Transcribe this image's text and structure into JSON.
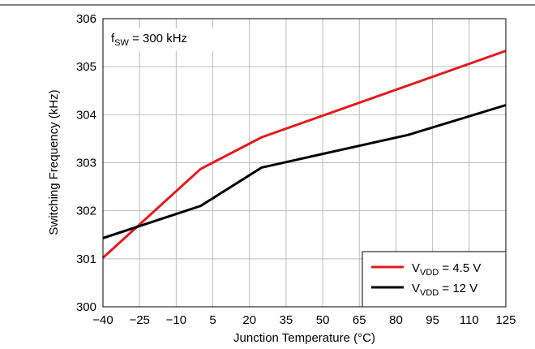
{
  "chart_data": {
    "type": "line",
    "title": "",
    "xlabel": "Junction Temperature (°C)",
    "ylabel": "Switching Frequency (kHz)",
    "annotation": {
      "prefix": "f",
      "subscript": "SW",
      "suffix": " = 300 kHz"
    },
    "xlim": [
      -40,
      125
    ],
    "ylim": [
      300,
      306
    ],
    "x_ticks": [
      -40,
      -25,
      -10,
      5,
      20,
      35,
      50,
      65,
      80,
      95,
      110,
      125
    ],
    "x_tick_labels": [
      "−40",
      "−25",
      "−10",
      "5",
      "20",
      "35",
      "50",
      "65",
      "80",
      "95",
      "110",
      "125"
    ],
    "y_ticks": [
      300,
      301,
      302,
      303,
      304,
      305,
      306
    ],
    "y_tick_labels": [
      "300",
      "301",
      "302",
      "303",
      "304",
      "305",
      "306"
    ],
    "grid": true,
    "legend_position": "bottom-right",
    "series": [
      {
        "name": "V_VDD = 4.5 V",
        "legend": {
          "prefix": "V",
          "subscript": "VDD",
          "suffix": " = 4.5 V"
        },
        "color": "#e41a1c",
        "x": [
          -40,
          0,
          25,
          125
        ],
        "y": [
          301.02,
          302.87,
          303.53,
          305.33
        ]
      },
      {
        "name": "V_VDD = 12 V",
        "legend": {
          "prefix": "V",
          "subscript": "VDD",
          "suffix": " = 12 V"
        },
        "color": "#000000",
        "x": [
          -40,
          0,
          25,
          85,
          125
        ],
        "y": [
          301.43,
          302.1,
          302.9,
          303.58,
          304.2
        ]
      }
    ]
  }
}
